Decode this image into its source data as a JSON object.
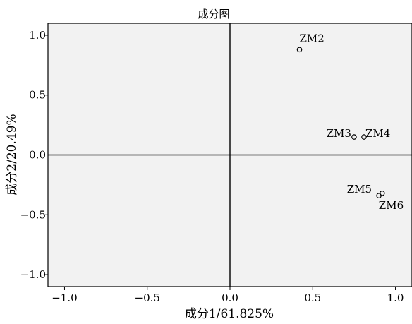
{
  "chart_data": {
    "type": "scatter",
    "title": "成分图",
    "xlabel": "成分1/61.825%",
    "ylabel": "成分2/20.49%",
    "xlim": [
      -1.1,
      1.1
    ],
    "ylim": [
      -1.1,
      1.1
    ],
    "xticks": [
      -1.0,
      -0.5,
      0.0,
      0.5,
      1.0
    ],
    "yticks": [
      -1.0,
      -0.5,
      0.0,
      0.5,
      1.0
    ],
    "xtick_labels": [
      "−1.0",
      "−0.5",
      "0.0",
      "0.5",
      "1.0"
    ],
    "ytick_labels": [
      "−1.0",
      "−0.5",
      "0.0",
      "0.5",
      "1.0"
    ],
    "grid": false,
    "reference_lines": {
      "x0": true,
      "y0": true
    },
    "plot_background": "#f2f2f2",
    "marker": "open-circle",
    "points": [
      {
        "label": "ZM2",
        "x": 0.42,
        "y": 0.88
      },
      {
        "label": "ZM3",
        "x": 0.75,
        "y": 0.15
      },
      {
        "label": "ZM4",
        "x": 0.81,
        "y": 0.15
      },
      {
        "label": "ZM5",
        "x": 0.9,
        "y": -0.34
      },
      {
        "label": "ZM6",
        "x": 0.92,
        "y": -0.32
      }
    ]
  }
}
